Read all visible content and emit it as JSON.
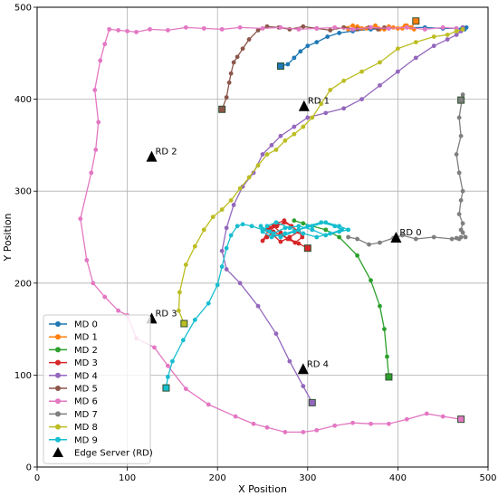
{
  "chart_data": {
    "type": "scatter",
    "xlabel": "X Position",
    "ylabel": "Y Position",
    "xlim": [
      0,
      500
    ],
    "ylim": [
      0,
      500
    ],
    "xticks": [
      0,
      100,
      200,
      300,
      400,
      500
    ],
    "yticks": [
      0,
      100,
      200,
      300,
      400,
      500
    ],
    "grid": true,
    "legend_position": "lower-left",
    "series": [
      {
        "name": "MD 0",
        "color": "#1f77b4",
        "x": [
          270,
          278,
          285,
          292,
          300,
          310,
          322,
          335,
          350,
          370,
          390,
          410,
          430,
          450,
          465,
          470,
          472,
          474,
          476
        ],
        "y": [
          436,
          438,
          445,
          452,
          458,
          462,
          468,
          472,
          474,
          476,
          477,
          478,
          478,
          477,
          477,
          476,
          478,
          476,
          478
        ]
      },
      {
        "name": "MD 1",
        "color": "#ff7f0e",
        "x": [
          420,
          415,
          408,
          400,
          390,
          380,
          370,
          360,
          350,
          340,
          345,
          355,
          365,
          375,
          385,
          395,
          405,
          410,
          414,
          418
        ],
        "y": [
          485,
          478,
          480,
          477,
          479,
          476,
          478,
          477,
          480,
          478,
          476,
          479,
          477,
          480,
          476,
          478,
          477,
          480,
          478,
          476
        ]
      },
      {
        "name": "MD 2",
        "color": "#2ca02c",
        "x": [
          390,
          388,
          385,
          380,
          370,
          355,
          335,
          320,
          305,
          295,
          285
        ],
        "y": [
          98,
          120,
          150,
          175,
          203,
          230,
          250,
          258,
          262,
          265,
          268
        ]
      },
      {
        "name": "MD 3",
        "color": "#d62728",
        "x": [
          300,
          290,
          280,
          270,
          262,
          255,
          250,
          258,
          266,
          274,
          282,
          290,
          280,
          270,
          262,
          255,
          262,
          270,
          278,
          286,
          294,
          290,
          282,
          274,
          266,
          258
        ],
        "y": [
          238,
          243,
          248,
          252,
          256,
          250,
          246,
          260,
          265,
          268,
          262,
          256,
          250,
          245,
          252,
          258,
          262,
          255,
          248,
          244,
          250,
          256,
          262,
          266,
          262,
          258
        ]
      },
      {
        "name": "MD 4",
        "color": "#9467bd",
        "x": [
          305,
          295,
          280,
          265,
          245,
          225,
          210,
          205,
          210,
          218,
          228,
          240,
          250,
          260,
          270,
          285,
          300,
          320,
          340,
          360,
          380,
          400,
          420,
          440,
          455,
          465,
          470,
          472
        ],
        "y": [
          70,
          88,
          115,
          145,
          175,
          200,
          215,
          235,
          260,
          285,
          305,
          320,
          340,
          350,
          360,
          370,
          380,
          385,
          390,
          400,
          415,
          430,
          445,
          458,
          465,
          470,
          474,
          478
        ]
      },
      {
        "name": "MD 5",
        "color": "#8c564b",
        "x": [
          205,
          210,
          213,
          215,
          218,
          222,
          228,
          235,
          245,
          255,
          268,
          280,
          295,
          310,
          325,
          340,
          355,
          368,
          378,
          385
        ],
        "y": [
          389,
          402,
          418,
          428,
          440,
          446,
          455,
          465,
          475,
          479,
          478,
          476,
          479,
          477,
          475,
          478,
          476,
          478,
          476,
          478
        ]
      },
      {
        "name": "MD 6",
        "color": "#e377c2",
        "x": [
          470,
          450,
          432,
          410,
          390,
          370,
          350,
          330,
          310,
          295,
          275,
          255,
          240,
          220,
          190,
          165,
          145,
          130,
          110,
          100,
          90,
          75,
          62,
          55,
          48,
          60,
          65,
          68,
          64,
          70,
          75,
          80,
          90,
          100,
          110,
          125,
          145,
          165,
          185,
          205,
          225,
          250,
          270,
          290,
          310,
          330,
          350,
          370,
          390,
          410,
          430,
          450,
          465
        ],
        "y": [
          52,
          55,
          58,
          52,
          47,
          47,
          48,
          45,
          40,
          38,
          38,
          43,
          47,
          55,
          68,
          85,
          110,
          130,
          140,
          165,
          170,
          185,
          200,
          225,
          270,
          320,
          345,
          375,
          410,
          442,
          460,
          476,
          475,
          474,
          473,
          476,
          475,
          478,
          477,
          476,
          478,
          477,
          478,
          476,
          477,
          478,
          476,
          478,
          477,
          478,
          476,
          478,
          477
        ]
      },
      {
        "name": "MD 7",
        "color": "#7f7f7f",
        "x": [
          470,
          472,
          468,
          470,
          465,
          468,
          472,
          470,
          468,
          472,
          470,
          472,
          475,
          470,
          468,
          465,
          460,
          440,
          420,
          405,
          395,
          380,
          368,
          355,
          345
        ],
        "y": [
          399,
          405,
          380,
          360,
          340,
          320,
          300,
          290,
          275,
          265,
          258,
          255,
          250,
          250,
          248,
          249,
          248,
          250,
          248,
          252,
          249,
          244,
          242,
          248,
          250
        ]
      },
      {
        "name": "MD 8",
        "color": "#bcbd22",
        "x": [
          163,
          157,
          158,
          165,
          175,
          185,
          195,
          205,
          215,
          225,
          235,
          245,
          255,
          265,
          275,
          285,
          295,
          305,
          315,
          325,
          340,
          360,
          380,
          400,
          420,
          440,
          455,
          465,
          472
        ],
        "y": [
          156,
          170,
          190,
          220,
          240,
          258,
          272,
          280,
          290,
          303,
          315,
          328,
          340,
          345,
          355,
          362,
          370,
          380,
          395,
          410,
          420,
          430,
          440,
          455,
          462,
          468,
          470,
          474,
          476
        ]
      },
      {
        "name": "MD 9",
        "color": "#17becf",
        "x": [
          143,
          145,
          150,
          162,
          175,
          190,
          200,
          205,
          210,
          215,
          222,
          228,
          238,
          250,
          262,
          275,
          290,
          305,
          320,
          335,
          345,
          335,
          320,
          305,
          290,
          275,
          260,
          250,
          255,
          265,
          280,
          295,
          310,
          325,
          338,
          330,
          315,
          300,
          285,
          270,
          258,
          248
        ],
        "y": [
          86,
          98,
          115,
          138,
          160,
          178,
          198,
          218,
          238,
          252,
          262,
          264,
          262,
          258,
          254,
          260,
          262,
          258,
          252,
          256,
          258,
          262,
          266,
          262,
          258,
          254,
          250,
          256,
          262,
          266,
          260,
          254,
          250,
          254,
          258,
          262,
          266,
          262,
          256,
          250,
          256,
          262
        ]
      }
    ],
    "edge_servers": {
      "legend_label": "Edge Server (RD)",
      "color": "#000000",
      "points": [
        {
          "label": "RD 0",
          "x": 398,
          "y": 249
        },
        {
          "label": "RD 1",
          "x": 296,
          "y": 392
        },
        {
          "label": "RD 2",
          "x": 127,
          "y": 337
        },
        {
          "label": "RD 3",
          "x": 127,
          "y": 161
        },
        {
          "label": "RD 4",
          "x": 295,
          "y": 106
        }
      ]
    }
  }
}
